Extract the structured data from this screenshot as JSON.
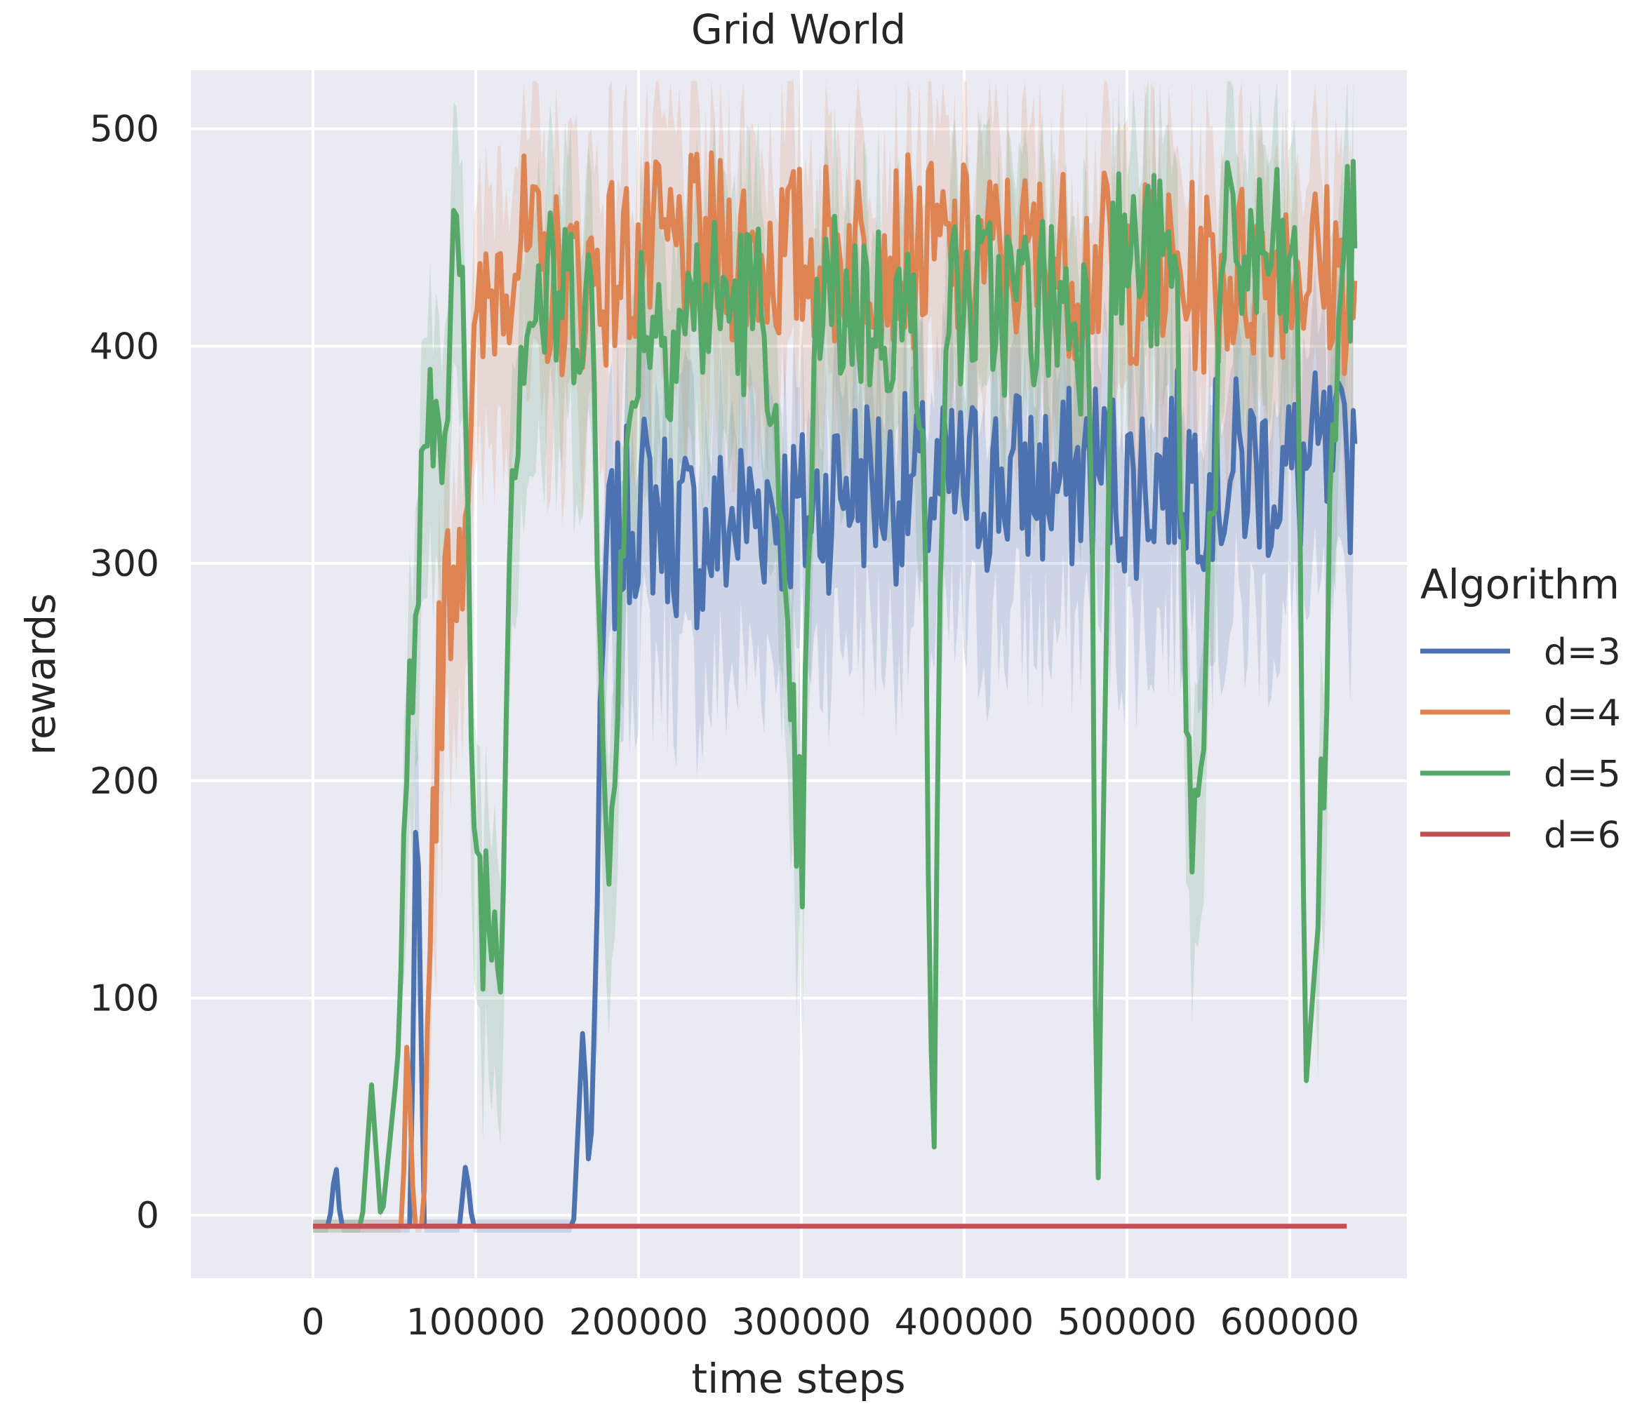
{
  "chart_data": {
    "type": "line",
    "title": "Grid World",
    "xlabel": "time steps",
    "ylabel": "rewards",
    "xlim": [
      -75000,
      672000
    ],
    "ylim": [
      -29,
      527
    ],
    "x_ticks": [
      0,
      100000,
      200000,
      300000,
      400000,
      500000,
      600000
    ],
    "y_ticks": [
      0,
      100,
      200,
      300,
      400,
      500
    ],
    "grid": true,
    "legend": {
      "title": "Algorithm",
      "placement": "right"
    },
    "confidence_band": true,
    "series": [
      {
        "name": "d=3",
        "color": "#4c72b0",
        "x": [
          0,
          10000,
          14000,
          17000,
          60000,
          64000,
          68000,
          90000,
          94000,
          98000,
          102000,
          160000,
          166000,
          170000,
          175000,
          180000,
          200000,
          220000,
          240000,
          260000,
          280000,
          300000,
          330000,
          360000,
          380000,
          400000,
          430000,
          460000,
          480000,
          500000,
          530000,
          560000,
          580000,
          600000,
          620000,
          635000,
          640000
        ],
        "y": [
          -5,
          -5,
          25,
          -5,
          -5,
          225,
          -5,
          -5,
          25,
          -5,
          -5,
          -5,
          90,
          10,
          150,
          300,
          330,
          320,
          310,
          320,
          330,
          320,
          340,
          335,
          330,
          335,
          340,
          335,
          345,
          335,
          345,
          340,
          345,
          340,
          345,
          340,
          355
        ]
      },
      {
        "name": "d=4",
        "color": "#dd8452",
        "x": [
          0,
          55000,
          58000,
          62000,
          68000,
          72000,
          78000,
          85000,
          92000,
          98000,
          105000,
          115000,
          125000,
          140000,
          160000,
          200000,
          250000,
          300000,
          350000,
          400000,
          450000,
          500000,
          550000,
          600000,
          640000
        ],
        "y": [
          -5,
          -5,
          90,
          -5,
          -5,
          160,
          250,
          300,
          320,
          380,
          410,
          440,
          450,
          430,
          430,
          440,
          445,
          440,
          445,
          440,
          440,
          435,
          430,
          440,
          430
        ]
      },
      {
        "name": "d=5",
        "color": "#55a868",
        "x": [
          0,
          30000,
          36000,
          42000,
          52000,
          60000,
          66000,
          72000,
          80000,
          86000,
          90000,
          100000,
          108000,
          115000,
          122000,
          130000,
          150000,
          170000,
          180000,
          200000,
          220000,
          240000,
          260000,
          280000,
          290000,
          300000,
          310000,
          330000,
          360000,
          375000,
          381000,
          388000,
          400000,
          430000,
          460000,
          478000,
          482000,
          490000,
          510000,
          530000,
          540000,
          560000,
          590000,
          605000,
          610000,
          618000,
          630000,
          640000
        ],
        "y": [
          -5,
          -5,
          60,
          -5,
          70,
          240,
          310,
          350,
          380,
          440,
          450,
          160,
          140,
          130,
          350,
          420,
          420,
          430,
          170,
          420,
          410,
          420,
          420,
          415,
          250,
          160,
          420,
          420,
          415,
          400,
          -5,
          420,
          420,
          420,
          420,
          410,
          -5,
          440,
          440,
          430,
          150,
          440,
          440,
          420,
          60,
          140,
          430,
          445
        ]
      },
      {
        "name": "d=6",
        "color": "#c44e52",
        "x": [
          0,
          100000,
          200000,
          300000,
          400000,
          500000,
          600000,
          635000
        ],
        "y": [
          -5,
          -5,
          -5,
          -5,
          -5,
          -5,
          -5,
          -5
        ]
      }
    ]
  }
}
